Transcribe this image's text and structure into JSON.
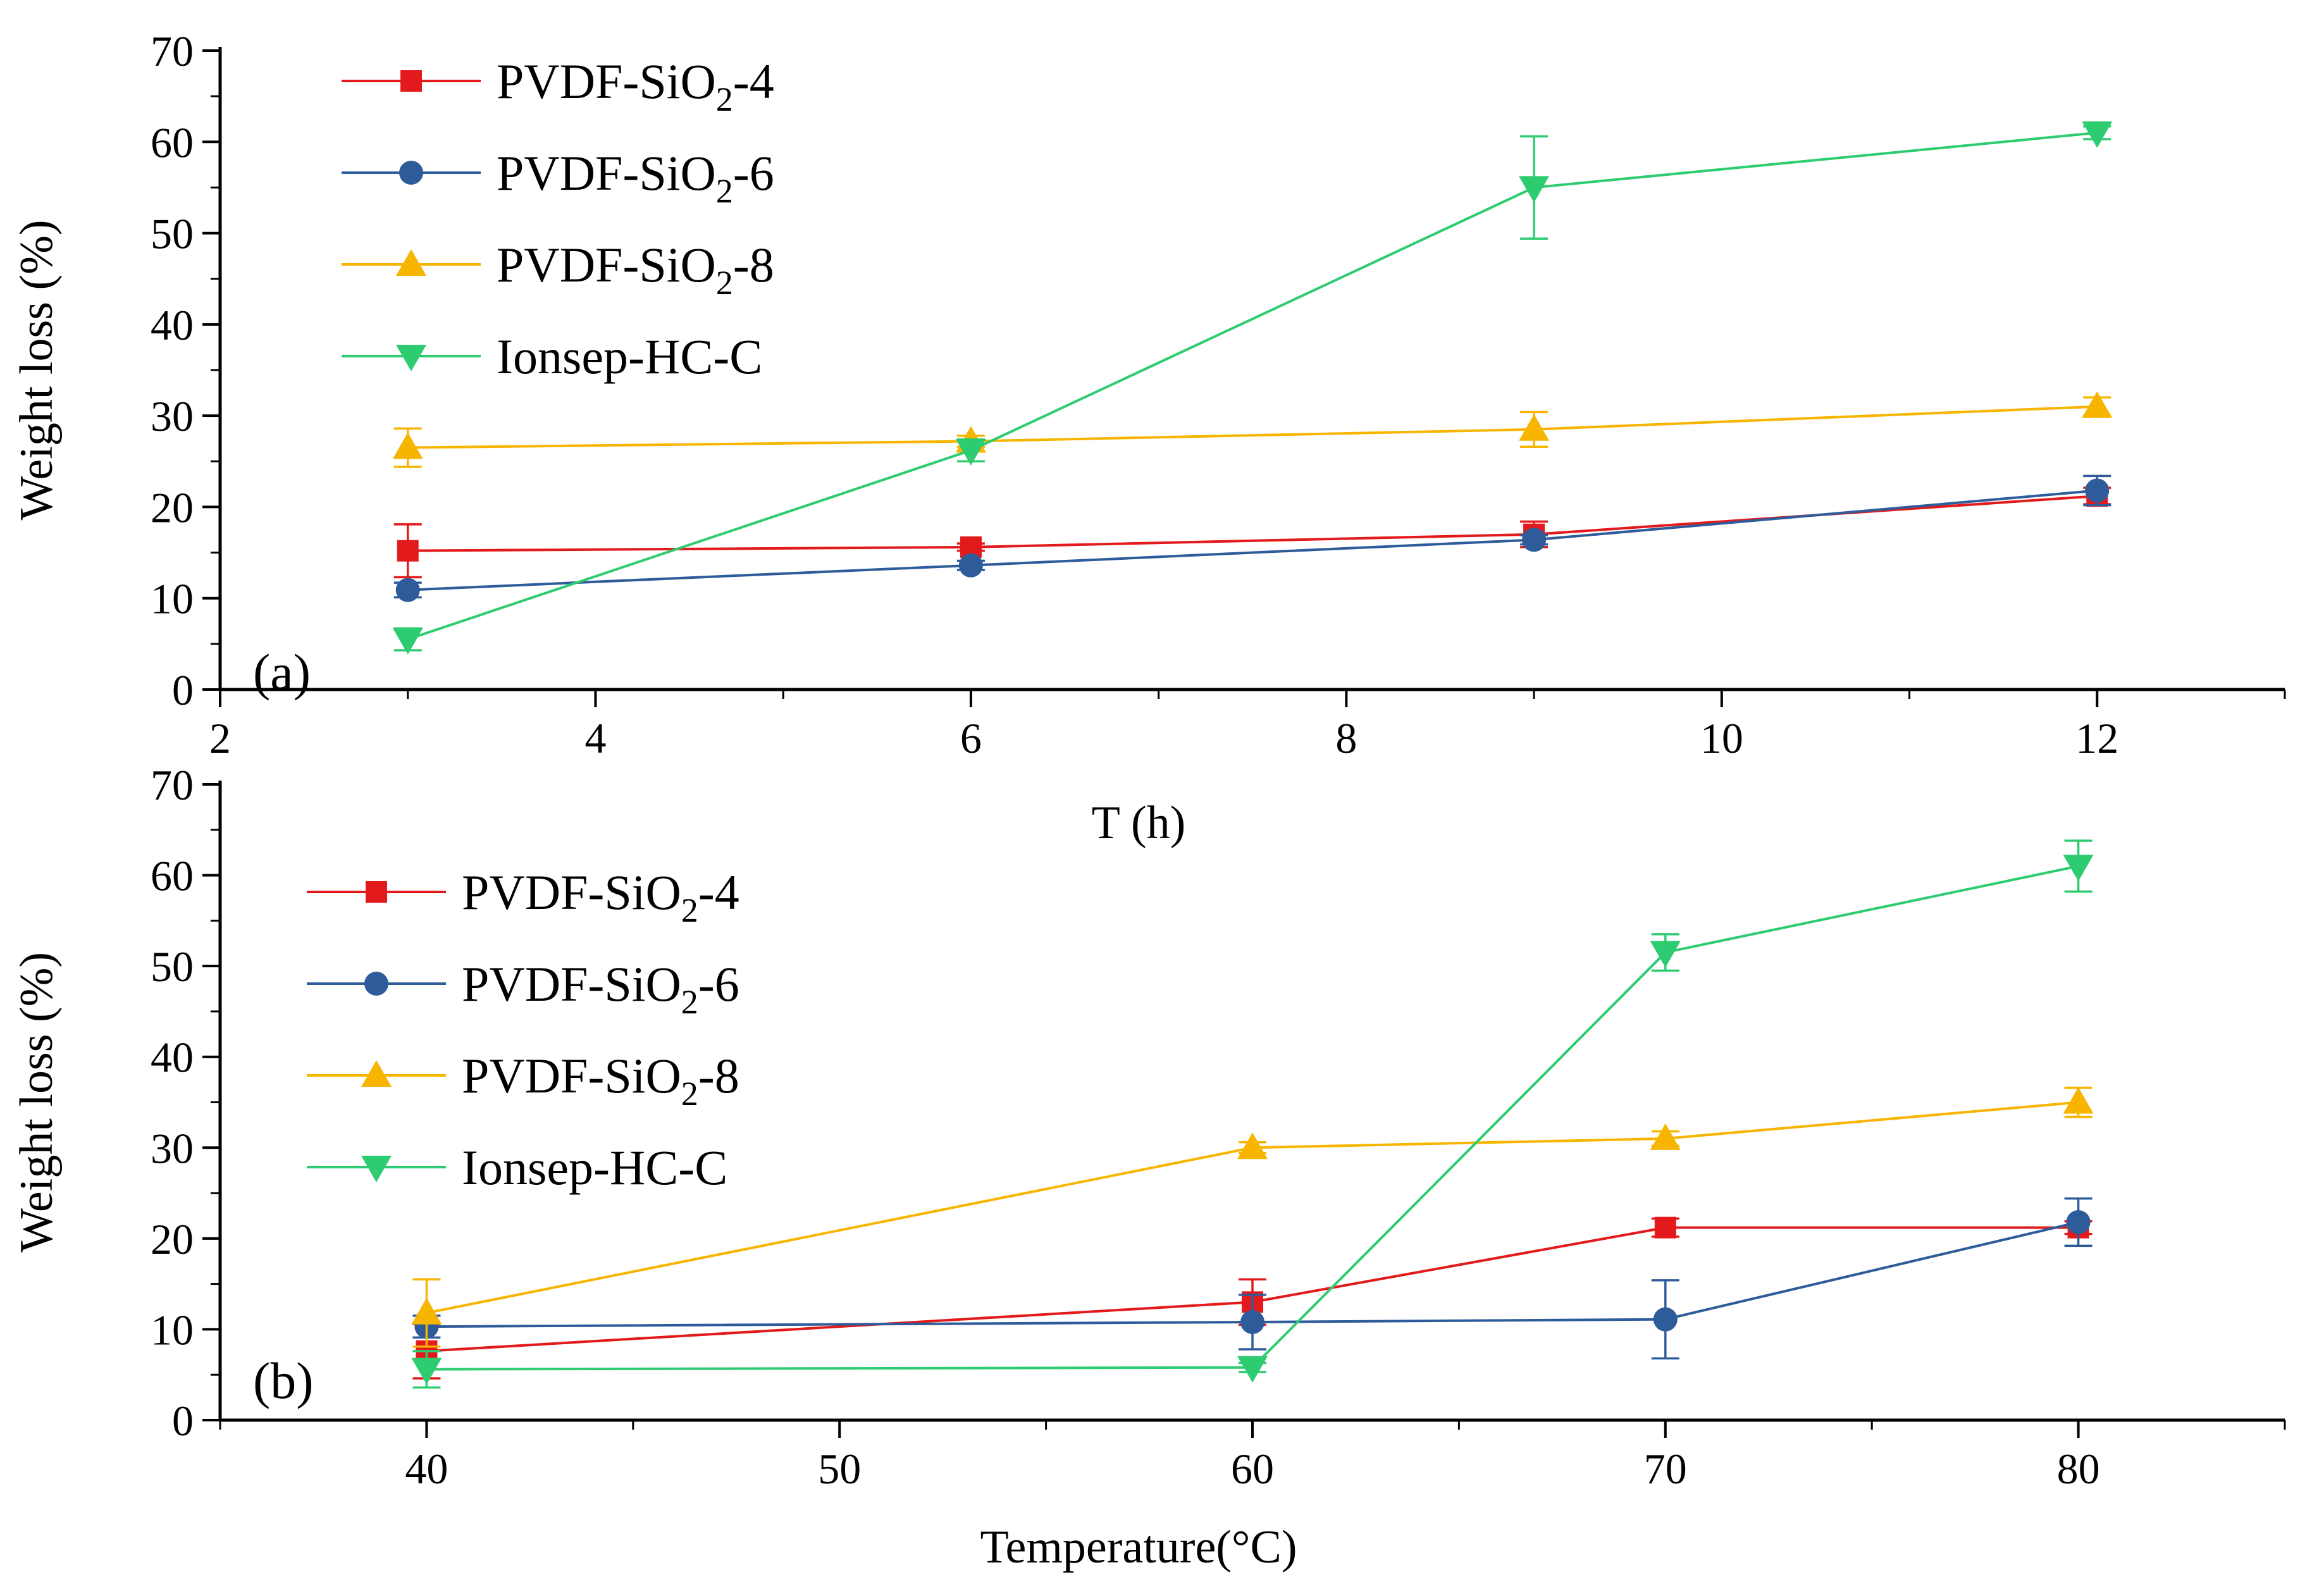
{
  "chart_data": [
    {
      "type": "line",
      "panel_label": "(a)",
      "xlabel": "T (h)",
      "ylabel": "Weight loss (%)",
      "xlim": [
        2,
        13
      ],
      "ylim": [
        0,
        70
      ],
      "xticks": [
        "2",
        "4",
        "6",
        "8",
        "10",
        "12"
      ],
      "yticks": [
        "0",
        "10",
        "20",
        "30",
        "40",
        "50",
        "60",
        "70"
      ],
      "legend_position": "top-left",
      "x": [
        3,
        6,
        9,
        12
      ],
      "series": [
        {
          "name_main": "PVDF-SiO",
          "name_sub": "2",
          "name_tail": "-4",
          "color": "#e31a1c",
          "marker": "square",
          "values": [
            15.2,
            15.6,
            17.0,
            21.2
          ],
          "errors": [
            2.9,
            0.4,
            1.4,
            0.9
          ]
        },
        {
          "name_main": "PVDF-SiO",
          "name_sub": "2",
          "name_tail": "-6",
          "color": "#2e5c9a",
          "marker": "circle",
          "values": [
            10.9,
            13.6,
            16.4,
            21.8
          ],
          "errors": [
            0.8,
            0.5,
            0.5,
            1.6
          ]
        },
        {
          "name_main": "PVDF-SiO",
          "name_sub": "2",
          "name_tail": "-8",
          "color": "#f7b500",
          "marker": "triangle-up",
          "values": [
            26.5,
            27.2,
            28.5,
            31.0
          ],
          "errors": [
            2.1,
            0.6,
            1.9,
            1.0
          ]
        },
        {
          "name_main": "Ionsep-HC-C",
          "name_sub": "",
          "name_tail": "",
          "color": "#2ecc71",
          "marker": "triangle-down",
          "values": [
            5.5,
            26.2,
            55.0,
            61.0
          ],
          "errors": [
            1.2,
            1.2,
            5.6,
            0.7
          ]
        }
      ]
    },
    {
      "type": "line",
      "panel_label": "(b)",
      "xlabel": "Temperature(°C)",
      "ylabel": "Weight loss (%)",
      "xlim": [
        35,
        85
      ],
      "ylim": [
        0,
        70
      ],
      "xticks": [
        "40",
        "50",
        "60",
        "70",
        "80"
      ],
      "yticks": [
        "0",
        "10",
        "20",
        "30",
        "40",
        "50",
        "60",
        "70"
      ],
      "legend_position": "top-left",
      "x": [
        40,
        60,
        70,
        80
      ],
      "series": [
        {
          "name_main": "PVDF-SiO",
          "name_sub": "2",
          "name_tail": "-4",
          "color": "#e31a1c",
          "marker": "square",
          "values": [
            7.6,
            13.0,
            21.2,
            21.2
          ],
          "errors": [
            3.0,
            2.5,
            1.0,
            0.7
          ]
        },
        {
          "name_main": "PVDF-SiO",
          "name_sub": "2",
          "name_tail": "-6",
          "color": "#2e5c9a",
          "marker": "circle",
          "values": [
            10.3,
            10.8,
            11.1,
            21.8
          ],
          "errors": [
            1.2,
            3.0,
            4.3,
            2.6
          ]
        },
        {
          "name_main": "PVDF-SiO",
          "name_sub": "2",
          "name_tail": "-8",
          "color": "#f7b500",
          "marker": "triangle-up",
          "values": [
            11.8,
            30.0,
            31.0,
            35.0
          ],
          "errors": [
            3.7,
            0.6,
            0.8,
            1.6
          ]
        },
        {
          "name_main": "Ionsep-HC-C",
          "name_sub": "",
          "name_tail": "",
          "color": "#2ecc71",
          "marker": "triangle-down",
          "values": [
            5.6,
            5.8,
            51.5,
            61.0
          ],
          "errors": [
            2.0,
            0.5,
            2.0,
            2.8
          ]
        }
      ]
    }
  ]
}
